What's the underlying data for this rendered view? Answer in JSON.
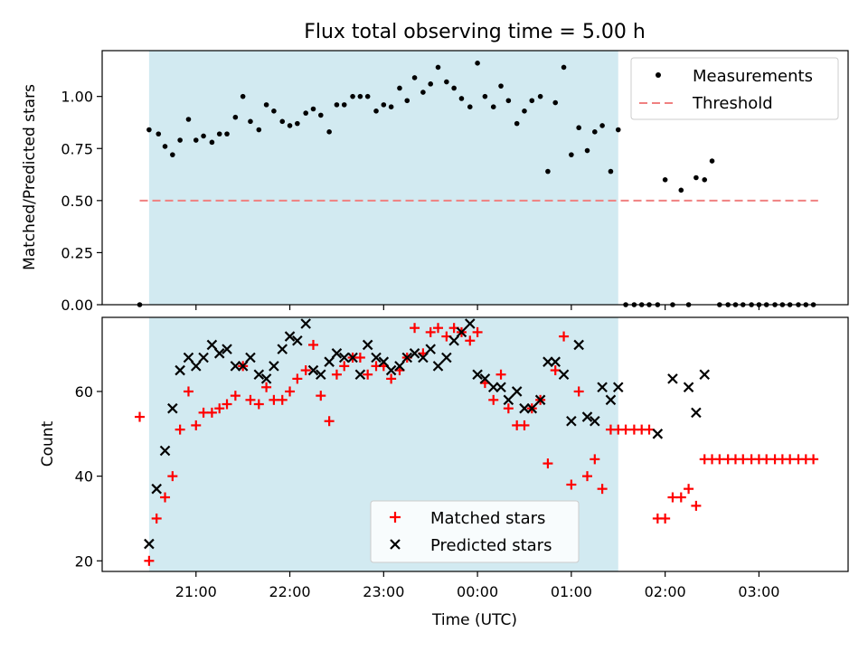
{
  "title": "Flux total observing time = 5.00 h",
  "colors": {
    "measurement": "#000000",
    "threshold": "#f08080",
    "matched": "#ff0000",
    "predicted": "#000000",
    "observing_window": "#add8e6"
  },
  "chart_data": [
    {
      "type": "scatter",
      "panel": "top",
      "xlabel": "",
      "ylabel": "Matched/Predicted stars",
      "x_unit": "hours UTC since 20:00 (displayed as HH:MM)",
      "xlim": [
        20.0,
        27.95
      ],
      "ylim": [
        0.0,
        1.22
      ],
      "yticks": [
        "0.00",
        "0.25",
        "0.50",
        "0.75",
        "1.00"
      ],
      "grid": false,
      "legend_position": "top-right",
      "legend": [
        "Measurements",
        "Threshold"
      ],
      "observing_window": [
        20.5,
        25.5
      ],
      "threshold": {
        "name": "Threshold",
        "value": 0.5,
        "x_range": [
          20.4,
          27.63
        ]
      },
      "series": [
        {
          "name": "Measurements",
          "marker": "dot",
          "x": [
            20.4,
            20.5,
            20.6,
            20.67,
            20.75,
            20.83,
            20.92,
            21.0,
            21.08,
            21.17,
            21.25,
            21.33,
            21.42,
            21.5,
            21.58,
            21.67,
            21.75,
            21.83,
            21.92,
            22.0,
            22.08,
            22.17,
            22.25,
            22.33,
            22.42,
            22.5,
            22.58,
            22.67,
            22.75,
            22.83,
            22.92,
            23.0,
            23.08,
            23.17,
            23.25,
            23.33,
            23.42,
            23.5,
            23.58,
            23.67,
            23.75,
            23.83,
            23.92,
            24.0,
            24.08,
            24.17,
            24.25,
            24.33,
            24.42,
            24.5,
            24.58,
            24.67,
            24.75,
            24.83,
            24.92,
            25.0,
            25.08,
            25.17,
            25.25,
            25.33,
            25.42,
            25.5,
            25.58,
            25.67,
            25.75,
            25.83,
            25.92,
            26.0,
            26.08,
            26.17,
            26.25,
            26.33,
            26.42,
            26.5,
            26.58,
            26.67,
            26.75,
            26.83,
            26.92,
            27.0,
            27.08,
            27.17,
            27.25,
            27.33,
            27.42,
            27.5,
            27.58
          ],
          "y": [
            0.0,
            0.84,
            0.82,
            0.76,
            0.72,
            0.79,
            0.89,
            0.79,
            0.81,
            0.78,
            0.82,
            0.82,
            0.9,
            1.0,
            0.88,
            0.84,
            0.96,
            0.93,
            0.88,
            0.86,
            0.87,
            0.92,
            0.94,
            0.91,
            0.83,
            0.96,
            0.96,
            1.0,
            1.0,
            1.0,
            0.93,
            0.96,
            0.95,
            1.04,
            0.98,
            1.09,
            1.02,
            1.06,
            1.14,
            1.07,
            1.04,
            0.99,
            0.95,
            1.16,
            1.0,
            0.95,
            1.05,
            0.98,
            0.87,
            0.93,
            0.98,
            1.0,
            0.64,
            0.97,
            1.14,
            0.72,
            0.85,
            0.74,
            0.83,
            0.86,
            0.64,
            0.84,
            0.0,
            0.0,
            0.0,
            0.0,
            0.0,
            0.6,
            0.0,
            0.55,
            0.0,
            0.61,
            0.6,
            0.69,
            0.0,
            0.0,
            0.0,
            0.0,
            0.0,
            0.0,
            0.0,
            0.0,
            0.0,
            0.0,
            0.0,
            0.0,
            0.0
          ]
        }
      ]
    },
    {
      "type": "scatter",
      "panel": "bottom",
      "xlabel": "Time (UTC)",
      "ylabel": "Count",
      "x_unit": "hours UTC since 20:00 (displayed as HH:MM)",
      "xlim": [
        20.0,
        27.95
      ],
      "ylim": [
        17.5,
        77.5
      ],
      "yticks": [
        "20",
        "40",
        "60"
      ],
      "xticks": [
        "21:00",
        "22:00",
        "23:00",
        "00:00",
        "01:00",
        "02:00",
        "03:00"
      ],
      "xtick_values": [
        21,
        22,
        23,
        24,
        25,
        26,
        27
      ],
      "grid": false,
      "legend_position": "bottom-center",
      "legend": [
        "Matched stars",
        "Predicted stars"
      ],
      "observing_window": [
        20.5,
        25.5
      ],
      "series": [
        {
          "name": "Matched stars",
          "marker": "plus",
          "x": [
            20.4,
            20.5,
            20.58,
            20.67,
            20.75,
            20.83,
            20.92,
            21.0,
            21.08,
            21.17,
            21.25,
            21.33,
            21.42,
            21.5,
            21.58,
            21.67,
            21.75,
            21.83,
            21.92,
            22.0,
            22.08,
            22.17,
            22.25,
            22.33,
            22.42,
            22.5,
            22.58,
            22.67,
            22.75,
            22.83,
            22.92,
            23.0,
            23.08,
            23.17,
            23.25,
            23.33,
            23.42,
            23.5,
            23.58,
            23.67,
            23.75,
            23.83,
            23.92,
            24.0,
            24.08,
            24.17,
            24.25,
            24.33,
            24.42,
            24.5,
            24.58,
            24.67,
            24.75,
            24.83,
            24.92,
            25.0,
            25.08,
            25.17,
            25.25,
            25.33,
            25.42,
            25.5,
            25.58,
            25.67,
            25.75,
            25.83,
            25.92,
            26.0,
            26.08,
            26.17,
            26.25,
            26.33,
            26.42,
            26.5,
            26.58,
            26.67,
            26.75,
            26.83,
            26.92,
            27.0,
            27.08,
            27.17,
            27.25,
            27.33,
            27.42,
            27.5,
            27.58
          ],
          "y": [
            54,
            20,
            30,
            35,
            40,
            51,
            60,
            52,
            55,
            55,
            56,
            57,
            59,
            66,
            58,
            57,
            61,
            58,
            58,
            60,
            63,
            65,
            71,
            59,
            53,
            64,
            66,
            68,
            68,
            64,
            66,
            66,
            63,
            65,
            68,
            75,
            69,
            74,
            75,
            73,
            75,
            74,
            72,
            74,
            62,
            58,
            64,
            56,
            52,
            52,
            56,
            58,
            43,
            65,
            73,
            38,
            60,
            40,
            44,
            37,
            51,
            51,
            51,
            51,
            51,
            51,
            30,
            30,
            35,
            35,
            37,
            33,
            44,
            44,
            44,
            44,
            44,
            44,
            44,
            44,
            44,
            44,
            44,
            44,
            44,
            44,
            44
          ]
        },
        {
          "name": "Predicted stars",
          "marker": "x",
          "x": [
            20.5,
            20.58,
            20.67,
            20.75,
            20.83,
            20.92,
            21.0,
            21.08,
            21.17,
            21.25,
            21.33,
            21.42,
            21.5,
            21.58,
            21.67,
            21.75,
            21.83,
            21.92,
            22.0,
            22.08,
            22.17,
            22.25,
            22.33,
            22.42,
            22.5,
            22.58,
            22.67,
            22.75,
            22.83,
            22.92,
            23.0,
            23.08,
            23.17,
            23.25,
            23.33,
            23.42,
            23.5,
            23.58,
            23.67,
            23.75,
            23.83,
            23.92,
            24.0,
            24.08,
            24.17,
            24.25,
            24.33,
            24.42,
            24.5,
            24.58,
            24.67,
            24.75,
            24.83,
            24.92,
            25.0,
            25.08,
            25.17,
            25.25,
            25.33,
            25.42,
            25.5,
            25.92,
            26.08,
            26.25,
            26.33,
            26.42
          ],
          "y": [
            24,
            37,
            46,
            56,
            65,
            68,
            66,
            68,
            71,
            69,
            70,
            66,
            66,
            68,
            64,
            63,
            66,
            70,
            73,
            72,
            76,
            65,
            64,
            67,
            69,
            68,
            68,
            64,
            71,
            68,
            67,
            65,
            66,
            68,
            69,
            68,
            70,
            66,
            68,
            72,
            74,
            76,
            64,
            63,
            61,
            61,
            58,
            60,
            56,
            56,
            58,
            67,
            67,
            64,
            53,
            71,
            54,
            53,
            61,
            58,
            61,
            50,
            63,
            61,
            55,
            64
          ]
        }
      ]
    }
  ]
}
